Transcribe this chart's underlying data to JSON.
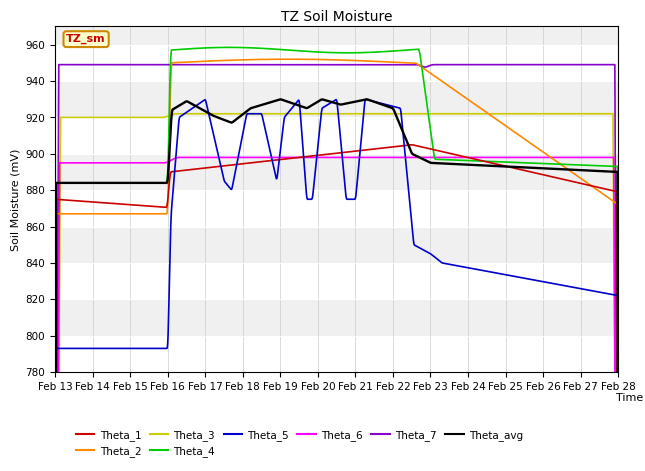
{
  "title": "TZ Soil Moisture",
  "xlabel": "Time",
  "ylabel": "Soil Moisture (mV)",
  "ylim": [
    780,
    970
  ],
  "yticks": [
    780,
    800,
    820,
    840,
    860,
    880,
    900,
    920,
    940,
    960
  ],
  "date_labels": [
    "Feb 13",
    "Feb 14",
    "Feb 15",
    "Feb 16",
    "Feb 17",
    "Feb 18",
    "Feb 19",
    "Feb 20",
    "Feb 21",
    "Feb 22",
    "Feb 23",
    "Feb 24",
    "Feb 25",
    "Feb 26",
    "Feb 27",
    "Feb 28"
  ],
  "colors": {
    "Theta_1": "#cc0000",
    "Theta_2": "#ff8800",
    "Theta_3": "#cccc00",
    "Theta_4": "#00cc00",
    "Theta_5": "#0000cc",
    "Theta_6": "#ff00ff",
    "Theta_7": "#8800cc",
    "Theta_avg": "#000000"
  },
  "bg_light": "#f0f0f0",
  "bg_dark": "#d8d8d8",
  "annotation_box_color": "#ffffcc",
  "annotation_text_color": "#cc0000",
  "annotation_border_color": "#cc8800"
}
